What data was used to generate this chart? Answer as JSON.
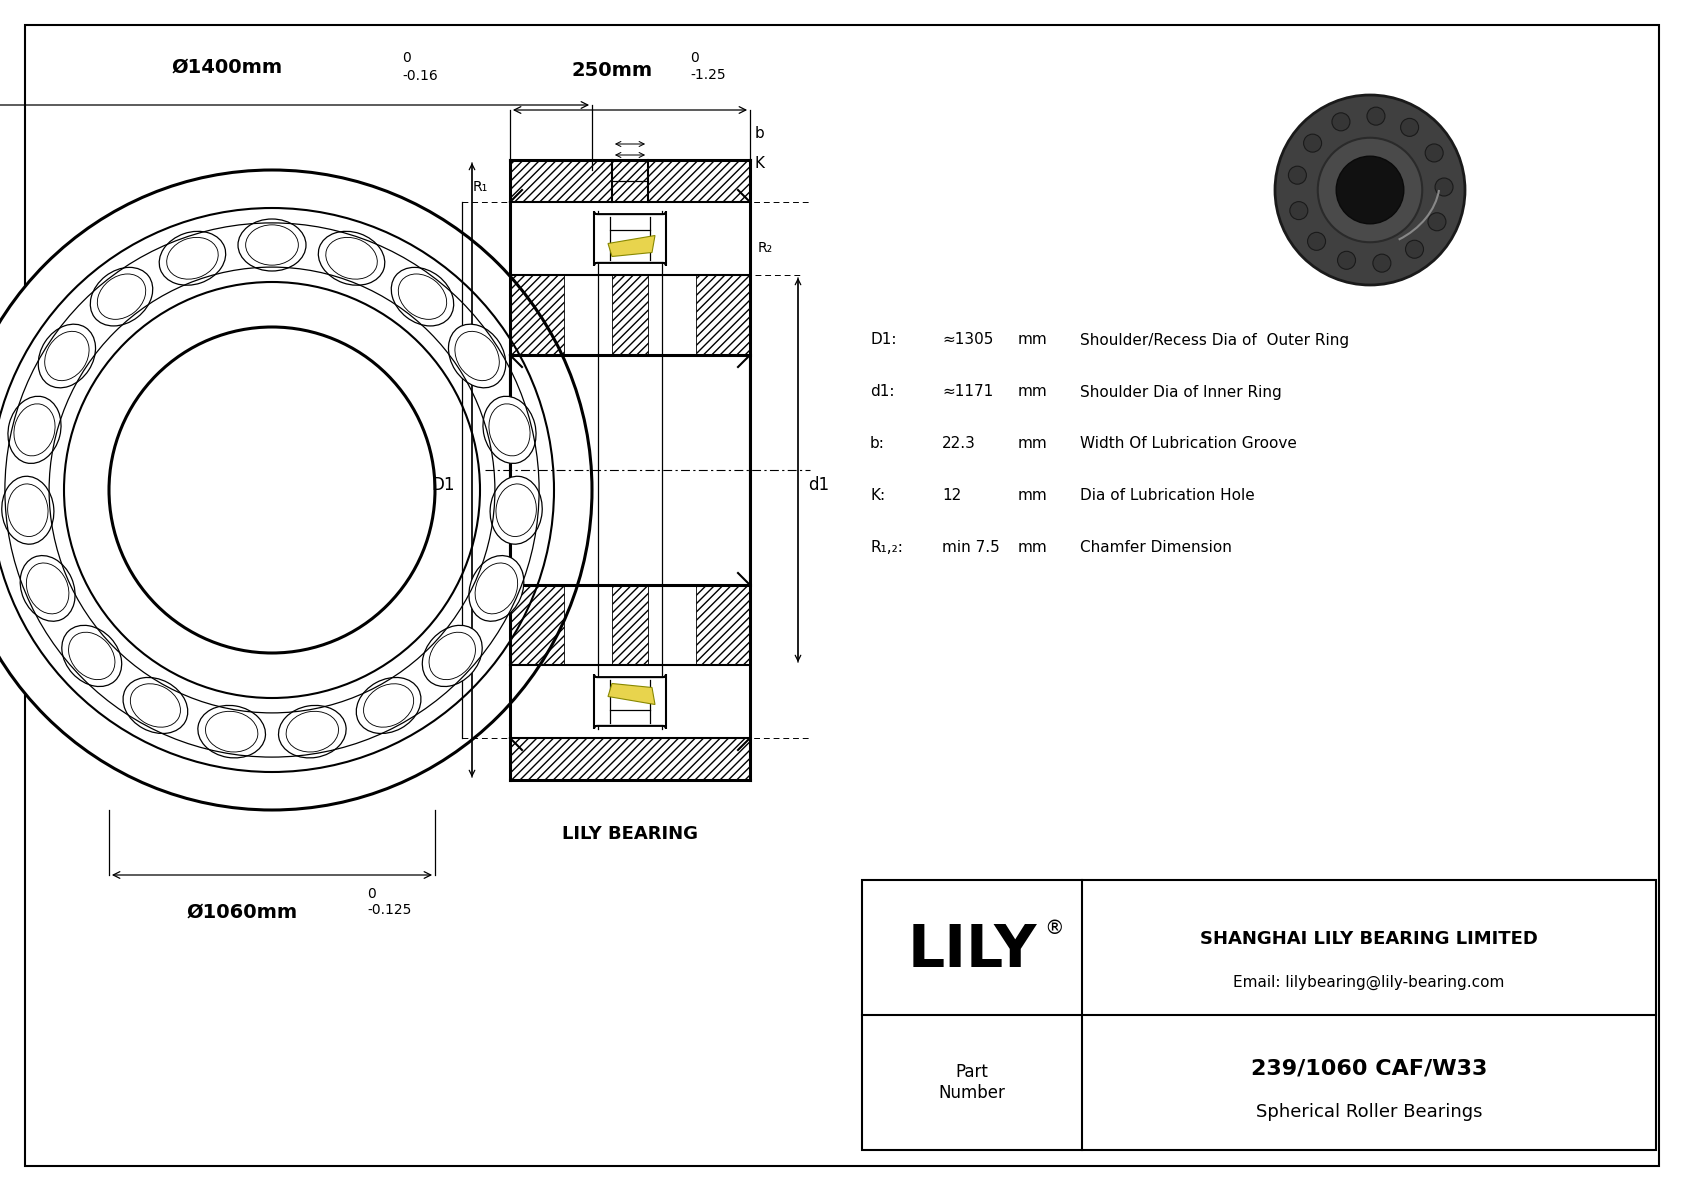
{
  "bg_color": "#ffffff",
  "line_color": "#000000",
  "yellow_color": "#e8d44d",
  "outer_diam_label": "Ø1400mm",
  "outer_tol_upper": "0",
  "outer_tol_lower": "-0.16",
  "inner_diam_label": "Ø1060mm",
  "inner_tol_upper": "0",
  "inner_tol_lower": "-0.125",
  "width_label": "250mm",
  "width_tol_upper": "0",
  "width_tol_lower": "-1.25",
  "company": "SHANGHAI LILY BEARING LIMITED",
  "email": "Email: lilybearing@lily-bearing.com",
  "part_number": "239/1060 CAF/W33",
  "bearing_type": "Spherical Roller Bearings",
  "lily_label": "LILY BEARING",
  "brand": "LILY",
  "specs": [
    [
      "D1:",
      "≈1305",
      "mm",
      "Shoulder/Recess Dia of  Outer Ring"
    ],
    [
      "d1:",
      "≈1171",
      "mm",
      "Shoulder Dia of Inner Ring"
    ],
    [
      "b:",
      "22.3",
      "mm",
      "Width Of Lubrication Groove"
    ],
    [
      "K:",
      "12",
      "mm",
      "Dia of Lubrication Hole"
    ],
    [
      "R₁,₂:",
      "min 7.5",
      "mm",
      "Chamfer Dimension"
    ]
  ]
}
